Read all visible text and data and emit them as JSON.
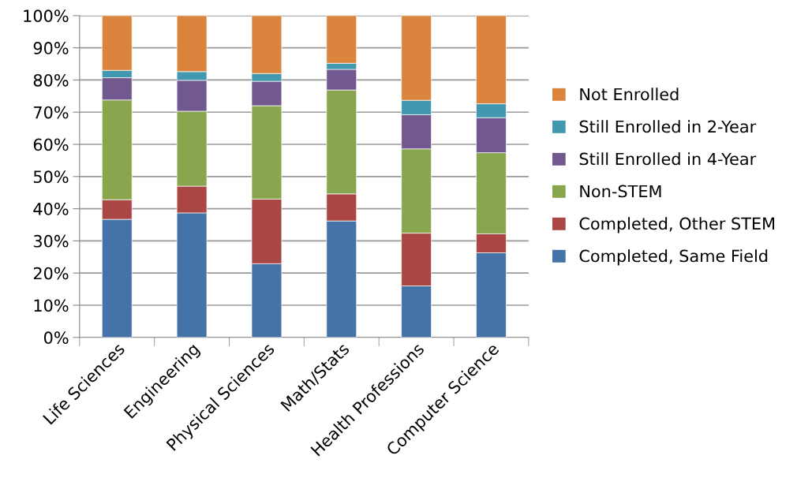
{
  "chart_data": {
    "type": "bar",
    "stacked": true,
    "categories": [
      "Life Sciences",
      "Engineering",
      "Physical Sciences",
      "Math/Stats",
      "Health Professions",
      "Computer Science"
    ],
    "series": [
      {
        "name": "Completed, Same Field",
        "color": "#4572a7",
        "values": [
          36.7,
          38.7,
          22.9,
          36.2,
          16.0,
          26.3
        ]
      },
      {
        "name": "Completed, Other STEM",
        "color": "#aa4643",
        "values": [
          6.1,
          8.3,
          20.1,
          8.4,
          16.4,
          5.9
        ]
      },
      {
        "name": "Non-STEM",
        "color": "#89a54e",
        "values": [
          31.0,
          23.3,
          29.0,
          32.3,
          26.2,
          25.2
        ]
      },
      {
        "name": "Still Enrolled in 4-Year",
        "color": "#71588f",
        "values": [
          6.9,
          9.6,
          7.6,
          6.4,
          10.6,
          10.9
        ]
      },
      {
        "name": "Still Enrolled in 2-Year",
        "color": "#4198af",
        "values": [
          2.3,
          2.7,
          2.4,
          1.9,
          4.5,
          4.3
        ]
      },
      {
        "name": "Not Enrolled",
        "color": "#db843d",
        "values": [
          17.0,
          17.4,
          18.0,
          14.8,
          26.3,
          27.4
        ]
      }
    ],
    "ylim": [
      0,
      100
    ],
    "yticks": [
      {
        "value": 0,
        "label": "0%"
      },
      {
        "value": 10,
        "label": "10%"
      },
      {
        "value": 20,
        "label": "20%"
      },
      {
        "value": 30,
        "label": "30%"
      },
      {
        "value": 40,
        "label": "40%"
      },
      {
        "value": 50,
        "label": "50%"
      },
      {
        "value": 60,
        "label": "60%"
      },
      {
        "value": 70,
        "label": "70%"
      },
      {
        "value": 80,
        "label": "80%"
      },
      {
        "value": 90,
        "label": "90%"
      },
      {
        "value": 100,
        "label": "100%"
      }
    ],
    "grid": "y",
    "legend": "right"
  }
}
